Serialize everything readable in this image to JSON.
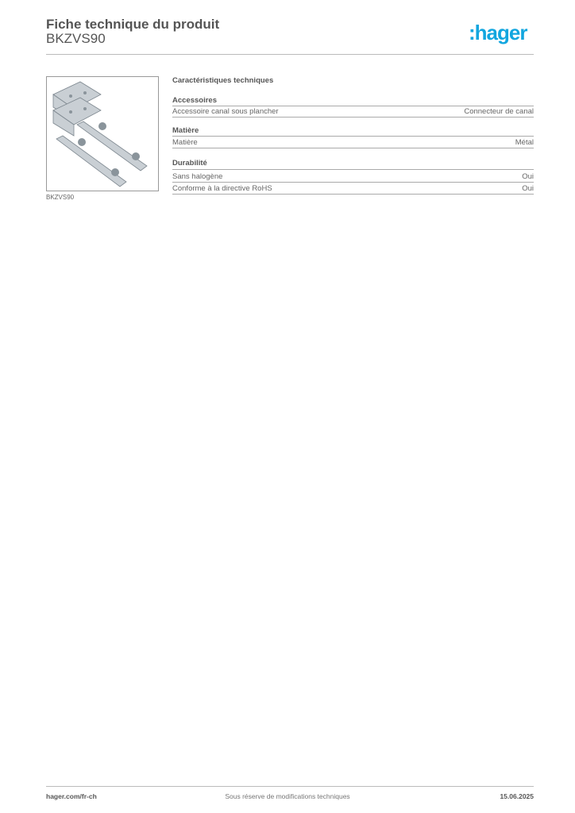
{
  "header": {
    "title": "Fiche technique du produit",
    "product_code": "BKZVS90",
    "logo": "hager",
    "logo_color": "#12a6df"
  },
  "product_image": {
    "caption": "BKZVS90"
  },
  "specs": {
    "heading": "Caractéristiques techniques",
    "sections": [
      {
        "title": "Accessoires",
        "rows": [
          {
            "label": "Accessoire canal sous plancher",
            "value": "Connecteur de canal"
          }
        ]
      },
      {
        "title": "Matière",
        "rows": [
          {
            "label": "Matière",
            "value": "Métal"
          }
        ]
      },
      {
        "title": "Durabilité",
        "rows": [
          {
            "label": "Sans halogène",
            "value": "Oui"
          },
          {
            "label": "Conforme à la directive RoHS",
            "value": "Oui"
          }
        ]
      }
    ]
  },
  "footer": {
    "website": "hager.com/fr-ch",
    "disclaimer": "Sous réserve de modifications techniques",
    "date": "15.06.2025"
  }
}
